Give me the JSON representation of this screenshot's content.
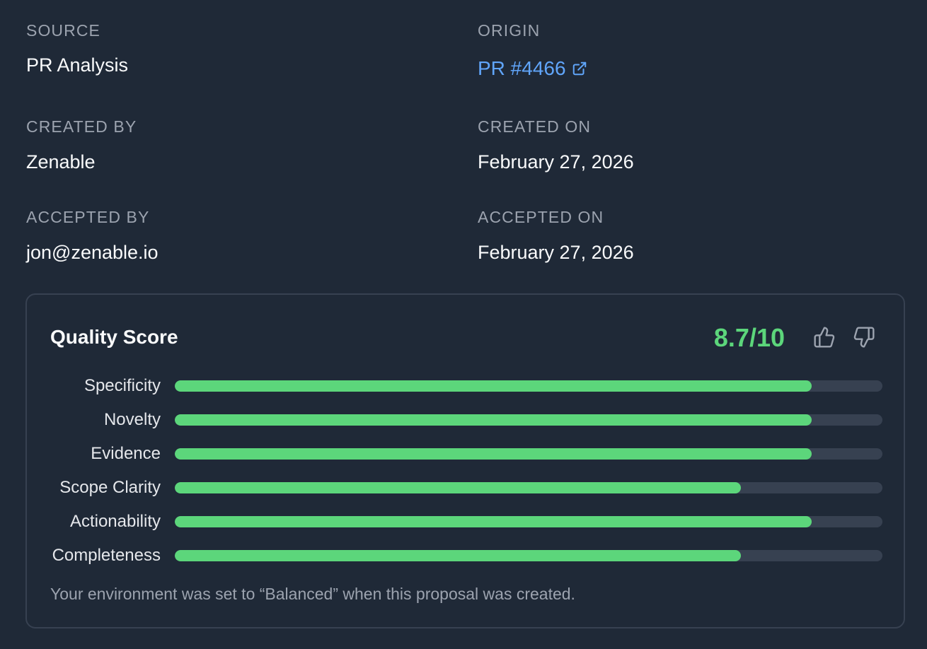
{
  "details": {
    "source": {
      "label": "SOURCE",
      "value": "PR Analysis"
    },
    "origin": {
      "label": "ORIGIN",
      "value": "PR #4466",
      "icon": "external-link-icon"
    },
    "created_by": {
      "label": "CREATED BY",
      "value": "Zenable"
    },
    "created_on": {
      "label": "CREATED ON",
      "value": "February 27, 2026"
    },
    "accepted_by": {
      "label": "ACCEPTED BY",
      "value": "jon@zenable.io"
    },
    "accepted_on": {
      "label": "ACCEPTED ON",
      "value": "February 27, 2026"
    }
  },
  "quality": {
    "title": "Quality Score",
    "score": "8.7/10",
    "thumbs_up_icon": "thumbs-up-icon",
    "thumbs_down_icon": "thumbs-down-icon",
    "metrics": [
      {
        "label": "Specificity",
        "value": 9
      },
      {
        "label": "Novelty",
        "value": 9
      },
      {
        "label": "Evidence",
        "value": 9
      },
      {
        "label": "Scope Clarity",
        "value": 8
      },
      {
        "label": "Actionability",
        "value": 9
      },
      {
        "label": "Completeness",
        "value": 8
      }
    ],
    "metric_max": 10,
    "footnote": "Your environment was set to “Balanced” when this proposal was created."
  },
  "colors": {
    "background": "#1f2937",
    "accent_green": "#5cd67b",
    "link_blue": "#60a5fa",
    "track": "#374151"
  }
}
